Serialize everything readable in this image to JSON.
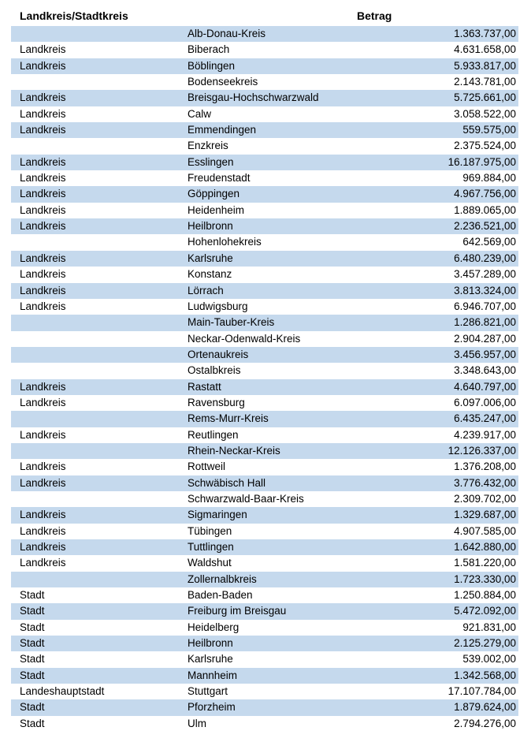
{
  "colors": {
    "row_alt": "#C5D9ED",
    "background": "#FFFFFF",
    "text": "#000000"
  },
  "table": {
    "header": {
      "col1": "Landkreis/Stadtkreis",
      "col2": "",
      "col3": "Betrag"
    },
    "rows": [
      {
        "type": "",
        "name": "Alb-Donau-Kreis",
        "amount": "1.363.737,00"
      },
      {
        "type": "Landkreis",
        "name": "Biberach",
        "amount": "4.631.658,00"
      },
      {
        "type": "Landkreis",
        "name": "Böblingen",
        "amount": "5.933.817,00"
      },
      {
        "type": "",
        "name": "Bodenseekreis",
        "amount": "2.143.781,00"
      },
      {
        "type": "Landkreis",
        "name": "Breisgau-Hochschwarzwald",
        "amount": "5.725.661,00"
      },
      {
        "type": "Landkreis",
        "name": "Calw",
        "amount": "3.058.522,00"
      },
      {
        "type": "Landkreis",
        "name": "Emmendingen",
        "amount": "559.575,00"
      },
      {
        "type": "",
        "name": "Enzkreis",
        "amount": "2.375.524,00"
      },
      {
        "type": "Landkreis",
        "name": "Esslingen",
        "amount": "16.187.975,00"
      },
      {
        "type": "Landkreis",
        "name": "Freudenstadt",
        "amount": "969.884,00"
      },
      {
        "type": "Landkreis",
        "name": "Göppingen",
        "amount": "4.967.756,00"
      },
      {
        "type": "Landkreis",
        "name": "Heidenheim",
        "amount": "1.889.065,00"
      },
      {
        "type": "Landkreis",
        "name": "Heilbronn",
        "amount": "2.236.521,00"
      },
      {
        "type": "",
        "name": "Hohenlohekreis",
        "amount": "642.569,00"
      },
      {
        "type": "Landkreis",
        "name": "Karlsruhe",
        "amount": "6.480.239,00"
      },
      {
        "type": "Landkreis",
        "name": "Konstanz",
        "amount": "3.457.289,00"
      },
      {
        "type": "Landkreis",
        "name": "Lörrach",
        "amount": "3.813.324,00"
      },
      {
        "type": "Landkreis",
        "name": "Ludwigsburg",
        "amount": "6.946.707,00"
      },
      {
        "type": "",
        "name": "Main-Tauber-Kreis",
        "amount": "1.286.821,00"
      },
      {
        "type": "",
        "name": "Neckar-Odenwald-Kreis",
        "amount": "2.904.287,00"
      },
      {
        "type": "",
        "name": "Ortenaukreis",
        "amount": "3.456.957,00"
      },
      {
        "type": "",
        "name": "Ostalbkreis",
        "amount": "3.348.643,00"
      },
      {
        "type": "Landkreis",
        "name": "Rastatt",
        "amount": "4.640.797,00"
      },
      {
        "type": "Landkreis",
        "name": "Ravensburg",
        "amount": "6.097.006,00"
      },
      {
        "type": "",
        "name": "Rems-Murr-Kreis",
        "amount": "6.435.247,00"
      },
      {
        "type": "Landkreis",
        "name": "Reutlingen",
        "amount": "4.239.917,00"
      },
      {
        "type": "",
        "name": "Rhein-Neckar-Kreis",
        "amount": "12.126.337,00"
      },
      {
        "type": "Landkreis",
        "name": "Rottweil",
        "amount": "1.376.208,00"
      },
      {
        "type": "Landkreis",
        "name": "Schwäbisch Hall",
        "amount": "3.776.432,00"
      },
      {
        "type": "",
        "name": "Schwarzwald-Baar-Kreis",
        "amount": "2.309.702,00"
      },
      {
        "type": "Landkreis",
        "name": "Sigmaringen",
        "amount": "1.329.687,00"
      },
      {
        "type": "Landkreis",
        "name": "Tübingen",
        "amount": "4.907.585,00"
      },
      {
        "type": "Landkreis",
        "name": "Tuttlingen",
        "amount": "1.642.880,00"
      },
      {
        "type": "Landkreis",
        "name": "Waldshut",
        "amount": "1.581.220,00"
      },
      {
        "type": "",
        "name": "Zollernalbkreis",
        "amount": "1.723.330,00"
      },
      {
        "type": "Stadt",
        "name": "Baden-Baden",
        "amount": "1.250.884,00"
      },
      {
        "type": "Stadt",
        "name": "Freiburg im Breisgau",
        "amount": "5.472.092,00"
      },
      {
        "type": "Stadt",
        "name": "Heidelberg",
        "amount": "921.831,00"
      },
      {
        "type": "Stadt",
        "name": "Heilbronn",
        "amount": "2.125.279,00"
      },
      {
        "type": "Stadt",
        "name": "Karlsruhe",
        "amount": "539.002,00"
      },
      {
        "type": "Stadt",
        "name": "Mannheim",
        "amount": "1.342.568,00"
      },
      {
        "type": "Landeshauptstadt",
        "name": "Stuttgart",
        "amount": "17.107.784,00"
      },
      {
        "type": "Stadt",
        "name": "Pforzheim",
        "amount": "1.879.624,00"
      },
      {
        "type": "Stadt",
        "name": "Ulm",
        "amount": "2.794.276,00"
      }
    ]
  }
}
